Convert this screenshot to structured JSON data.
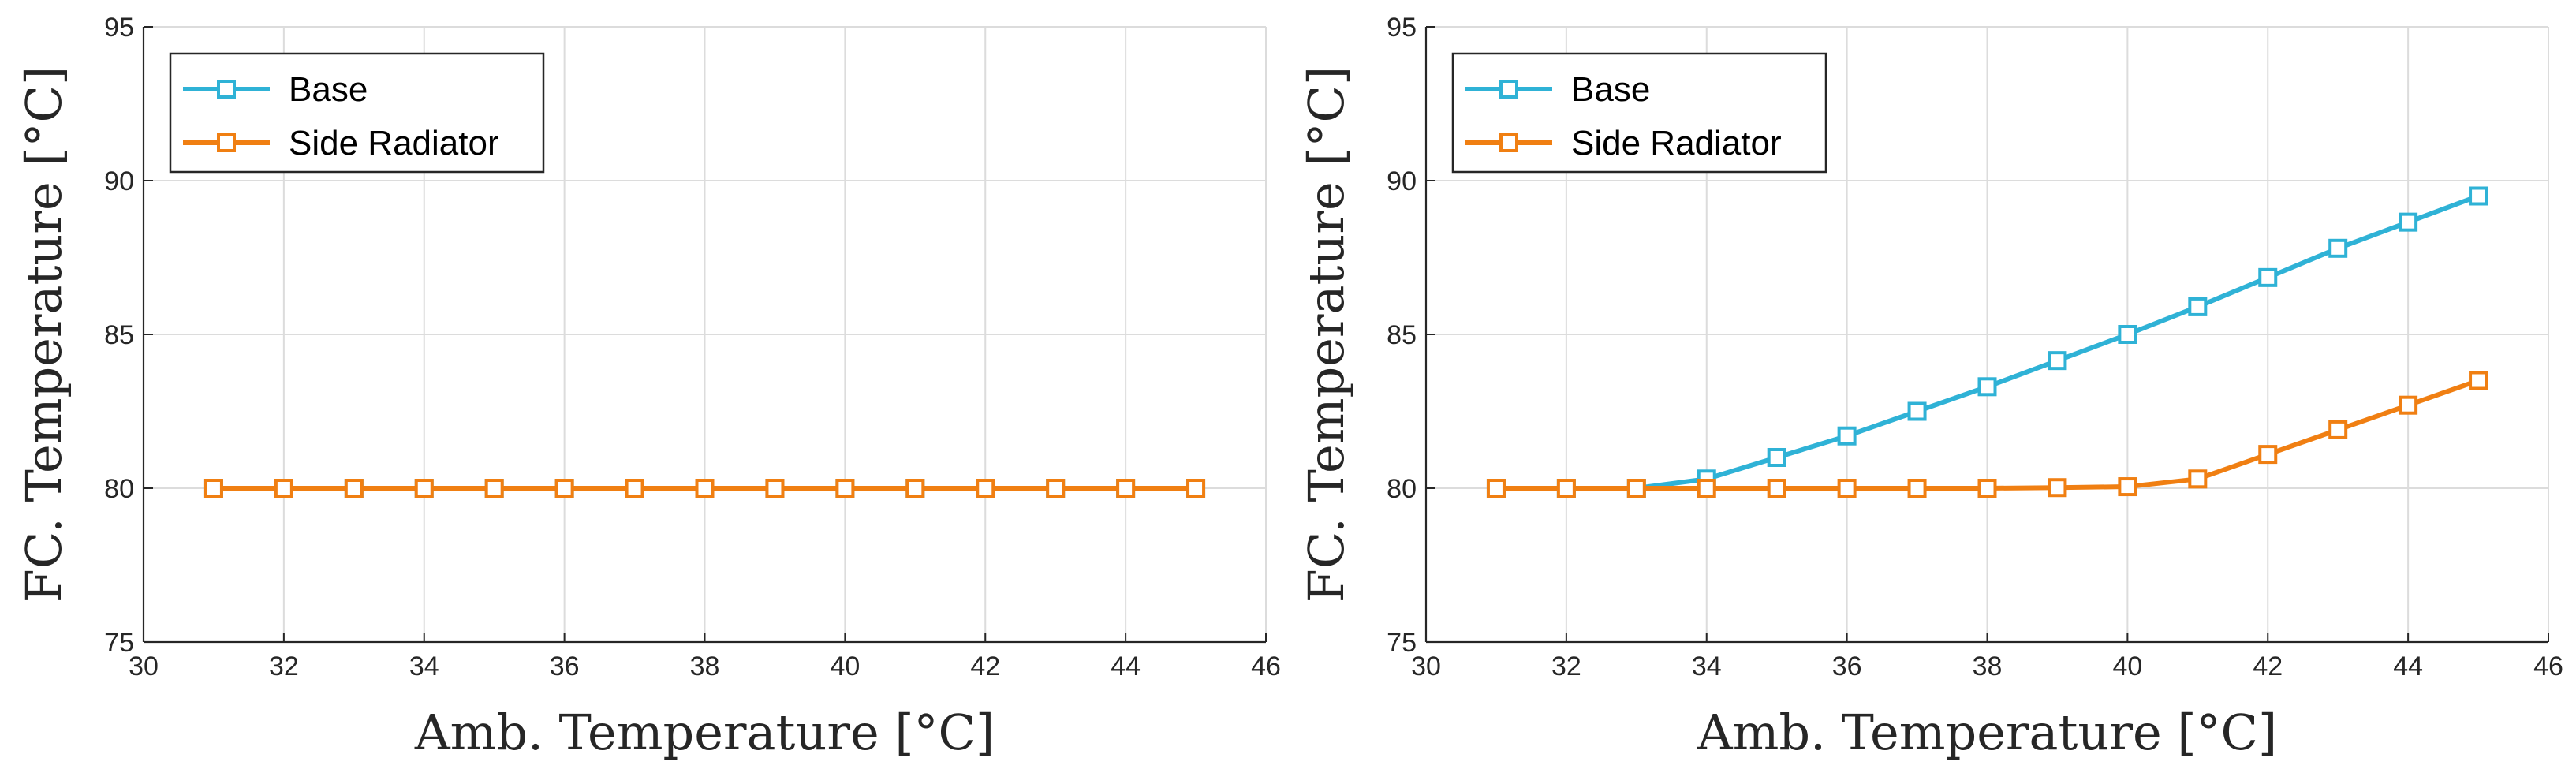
{
  "chart_data": [
    {
      "type": "line",
      "xlabel": "Amb. Temperature [°C]",
      "ylabel": "FC. Temperature [°C]",
      "xlim": [
        30,
        46
      ],
      "ylim": [
        75,
        95
      ],
      "xticks": [
        30,
        32,
        34,
        36,
        38,
        40,
        42,
        44,
        46
      ],
      "yticks": [
        75,
        80,
        85,
        90,
        95
      ],
      "grid": true,
      "legend": "top-left",
      "marker": "square",
      "x": [
        31,
        32,
        33,
        34,
        35,
        36,
        37,
        38,
        39,
        40,
        41,
        42,
        43,
        44,
        45
      ],
      "series": [
        {
          "name": "Base",
          "color": "#2fb2d6",
          "values": [
            80,
            80,
            80,
            80,
            80,
            80,
            80,
            80,
            80,
            80,
            80,
            80,
            80,
            80,
            80
          ]
        },
        {
          "name": "Side Radiator",
          "color": "#f07f12",
          "values": [
            80,
            80,
            80,
            80,
            80,
            80,
            80,
            80,
            80,
            80,
            80,
            80,
            80,
            80,
            80
          ]
        }
      ]
    },
    {
      "type": "line",
      "xlabel": "Amb. Temperature [°C]",
      "ylabel": "FC. Temperature [°C]",
      "xlim": [
        30,
        46
      ],
      "ylim": [
        75,
        95
      ],
      "xticks": [
        30,
        32,
        34,
        36,
        38,
        40,
        42,
        44,
        46
      ],
      "yticks": [
        75,
        80,
        85,
        90,
        95
      ],
      "grid": true,
      "legend": "top-left",
      "marker": "square",
      "x": [
        31,
        32,
        33,
        34,
        35,
        36,
        37,
        38,
        39,
        40,
        41,
        42,
        43,
        44,
        45
      ],
      "series": [
        {
          "name": "Base",
          "color": "#2fb2d6",
          "values": [
            80,
            80,
            80,
            80.3,
            81,
            81.7,
            82.5,
            83.3,
            84.15,
            85,
            85.9,
            86.85,
            87.8,
            88.65,
            89.5
          ]
        },
        {
          "name": "Side Radiator",
          "color": "#f07f12",
          "values": [
            80,
            80,
            80,
            80,
            80,
            80,
            80,
            80,
            80.02,
            80.05,
            80.3,
            81.1,
            81.9,
            82.7,
            83.5
          ]
        }
      ]
    }
  ]
}
